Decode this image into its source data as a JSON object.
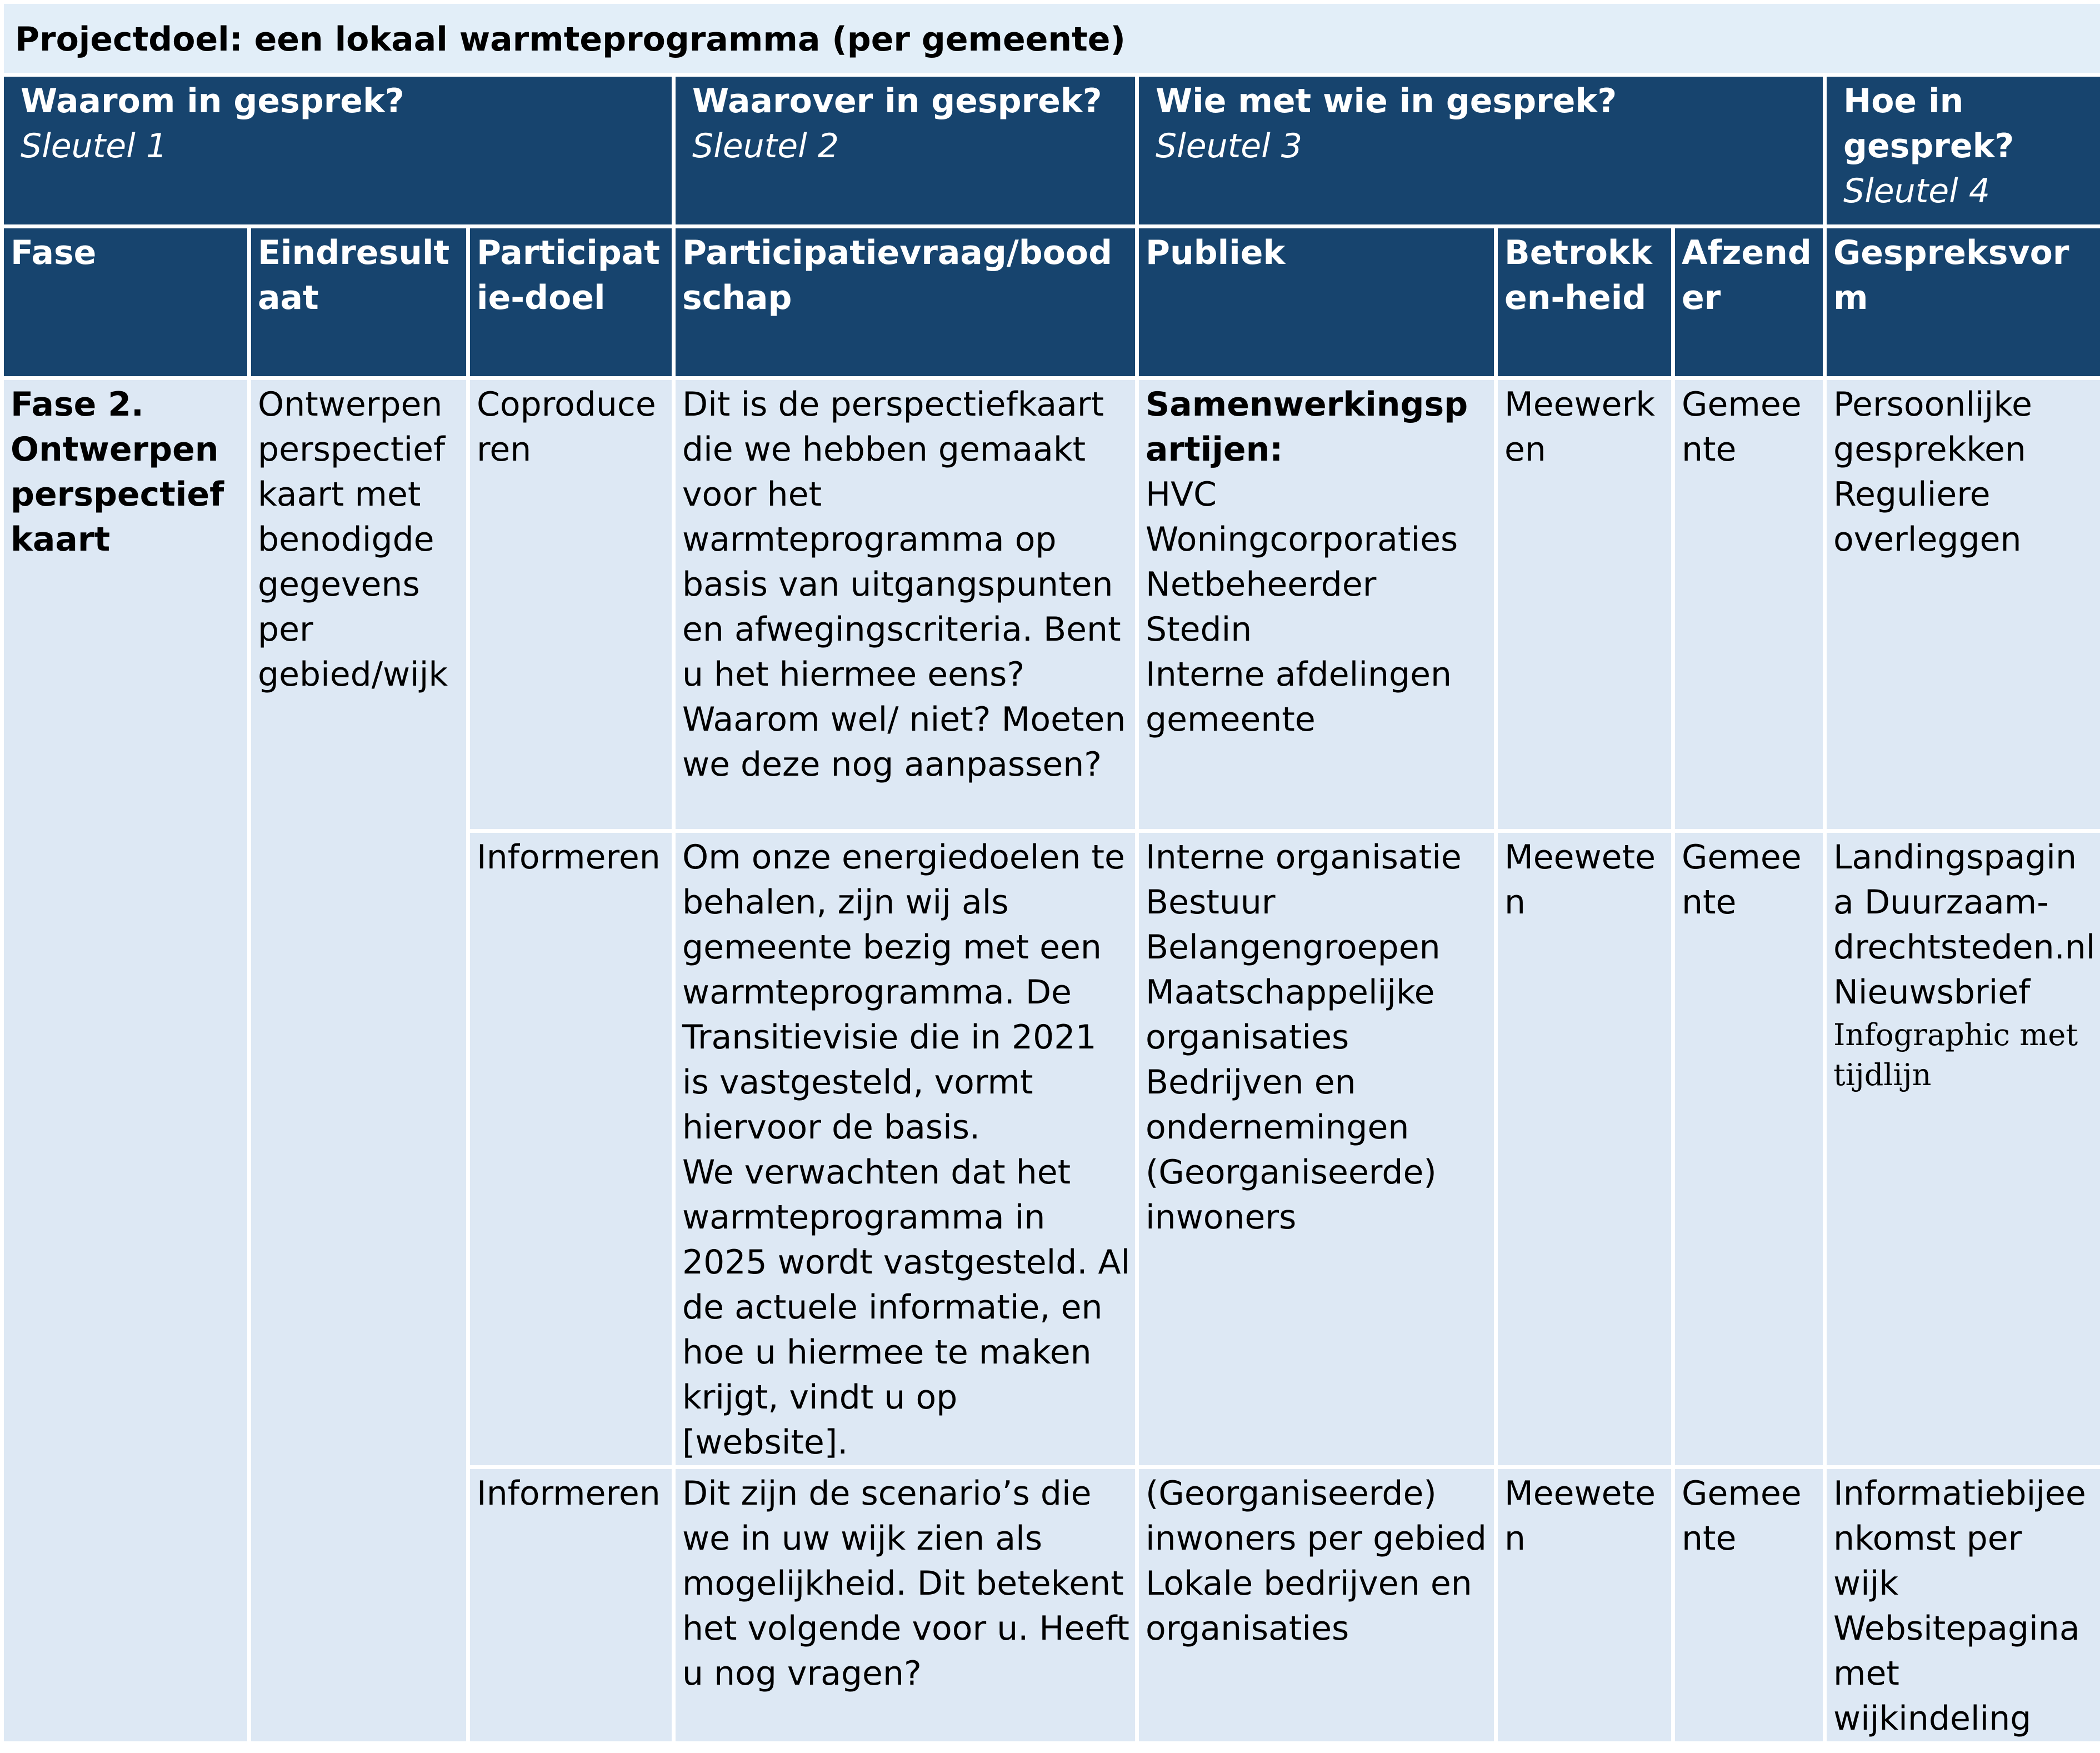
{
  "title": "Projectdoel: een lokaal warmteprogramma (per gemeente)",
  "header_groups": [
    {
      "title": "Waarom in gesprek?",
      "subtitle": "Sleutel 1",
      "span": 3
    },
    {
      "title": "Waarover in gesprek?",
      "subtitle": "Sleutel 2",
      "span": 1
    },
    {
      "title": "Wie met wie in gesprek?",
      "subtitle": "Sleutel 3",
      "span": 3
    },
    {
      "title": "Hoe in gesprek?",
      "subtitle": "Sleutel 4",
      "span": 1
    }
  ],
  "columns": [
    "Fase",
    "Eindresultaat",
    "Participatie-doel",
    "Participatievraag/boodschap",
    "Publiek",
    "Betrokken-heid",
    "Afzender",
    "Gespreksvorm"
  ],
  "phase": {
    "fase": "Fase 2. Ontwerpen perspectiefkaart",
    "eindresultaat": "Ontwerpen perspectiefkaart met benodigde gegevens per gebied/wijk"
  },
  "rows": [
    {
      "doel": "Coproduceren",
      "vraag": [
        "Dit is de perspectiefkaart die we hebben gemaakt voor het warmteprogramma op basis van uitgangspunten en afwegingscriteria. Bent u het hiermee eens? Waarom wel/ niet? Moeten we deze nog aanpassen?"
      ],
      "publiek": [
        "Samenwerkingspartijen:",
        "HVC",
        "Woningcorporaties",
        "Netbeheerder",
        "Stedin",
        "Interne afdelingen gemeente"
      ],
      "betrokkenheid": "Meewerken",
      "afzender": "Gemeente",
      "gespreksvorm": [
        "Persoonlijke gesprekken",
        "Reguliere overleggen"
      ]
    },
    {
      "doel": "Informeren",
      "vraag": [
        "Om onze energiedoelen te behalen, zijn wij als gemeente bezig met een warmteprogramma. De Transitievisie die in 2021 is vastgesteld, vormt hiervoor de basis.",
        "We verwachten dat het warmteprogramma in 2025 wordt vastgesteld. Al de actuele informatie, en hoe u hiermee te maken krijgt, vindt u op [website]."
      ],
      "publiek": [
        "Interne organisatie",
        "Bestuur",
        "Belangengroepen",
        "Maatschappelijke organisaties",
        "Bedrijven en ondernemingen",
        "(Georganiseerde) inwoners"
      ],
      "betrokkenheid": "Meeweten",
      "afzender": "Gemeente",
      "gespreksvorm": [
        "Landingspagina Duurzaam-drechtsteden.nl",
        "Nieuwsbrief",
        "Infographic met tijdlijn"
      ]
    },
    {
      "doel": "Informeren",
      "vraag": [
        "Dit zijn de scenario’s die we in uw wijk zien als mogelijkheid. Dit betekent het volgende voor u. Heeft u nog vragen?"
      ],
      "publiek": [
        "(Georganiseerde) inwoners per gebied",
        "Lokale bedrijven en organisaties"
      ],
      "betrokkenheid": "Meeweten",
      "afzender": "Gemeente",
      "gespreksvorm": [
        "Informatiebijeenkomst per wijk",
        "Websitepagina met wijkindeling"
      ]
    }
  ]
}
